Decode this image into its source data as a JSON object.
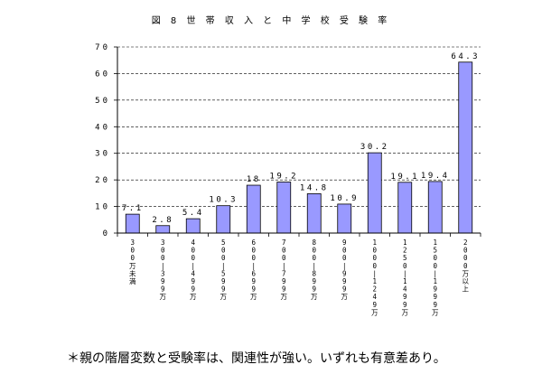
{
  "title": "図 8  世 帯 収 入 と 中 学 校 受 験 率",
  "footnote": "＊親の階層変数と受験率は、関連性が強い。いずれも有意差あり。",
  "chart_data": {
    "type": "bar",
    "title": "図 8  世 帯 収 入 と 中 学 校 受 験 率",
    "xlabel": "",
    "ylabel": "",
    "ylim": [
      0,
      70
    ],
    "yticks": [
      0,
      10,
      20,
      30,
      40,
      50,
      60,
      70
    ],
    "grid": true,
    "legend": "none",
    "bar_color": "#9999ff",
    "categories": [
      "300万未満",
      "300～399万",
      "400～499万",
      "500～599万",
      "600～699万",
      "700～799万",
      "800～899万",
      "900～999万",
      "1000～1249万",
      "1250～1499万",
      "1500～1999万",
      "2000万以上"
    ],
    "values": [
      7.1,
      2.8,
      5.4,
      10.3,
      18,
      19.2,
      14.8,
      10.9,
      30.2,
      19.1,
      19.4,
      64.3
    ],
    "value_labels": [
      "7.1",
      "2.8",
      "5.4",
      "10.3",
      "18",
      "19.2",
      "14.8",
      "10.9",
      "30.2",
      "19.1",
      "19.4",
      "64.3"
    ]
  }
}
